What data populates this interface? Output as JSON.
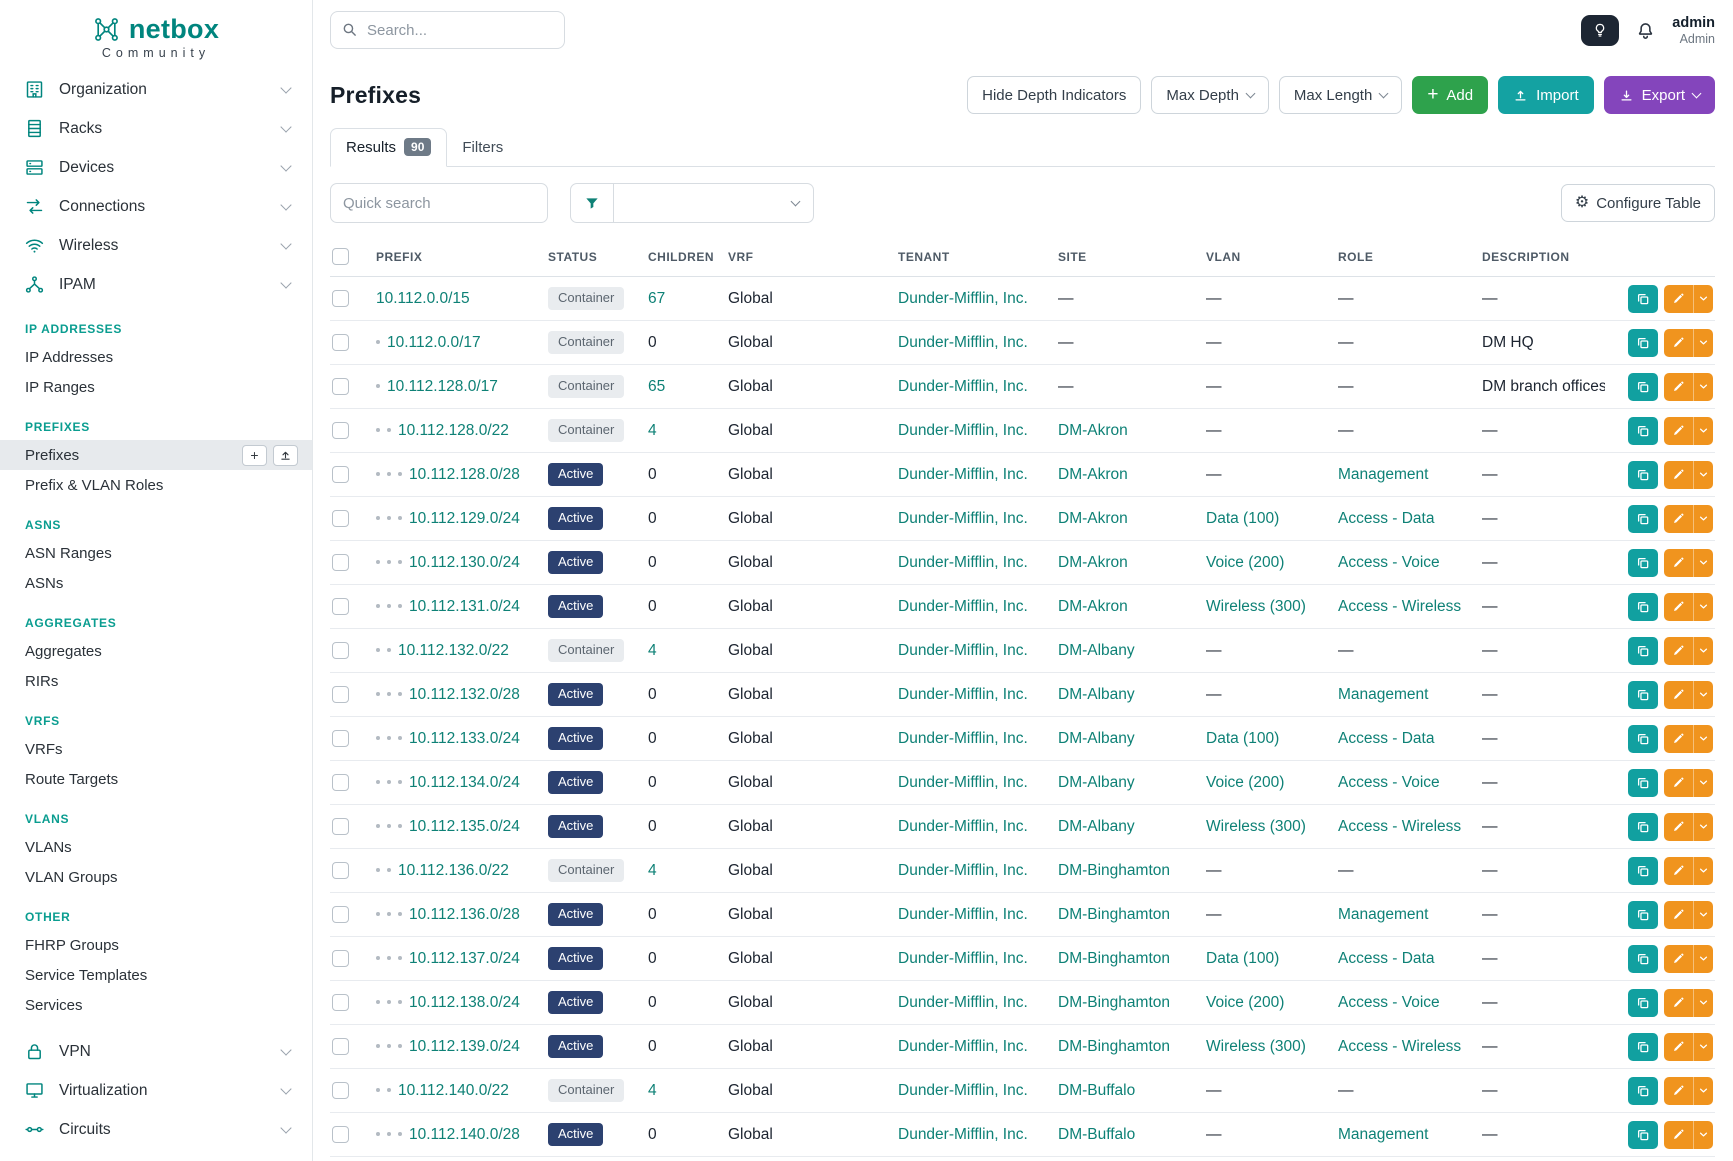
{
  "colors": {
    "brand_teal": "#00857e",
    "link_teal": "#0e8176",
    "status_active_bg": "#2c4170",
    "status_container_bg": "#e9ecef",
    "add_button_green": "#2ea24c",
    "import_button_teal": "#14a2a2",
    "export_button_purple": "#8445bc",
    "copy_button_teal": "#11a0a0",
    "edit_button_orange": "#f0941e"
  },
  "brand": {
    "logo_text": "netbox",
    "subtitle": "Community"
  },
  "topbar": {
    "search_placeholder": "Search...",
    "user_name": "admin",
    "user_role": "Admin"
  },
  "sidebar": {
    "menus": [
      {
        "label": "Organization",
        "icon": "building-icon"
      },
      {
        "label": "Racks",
        "icon": "rack-icon"
      },
      {
        "label": "Devices",
        "icon": "device-icon"
      },
      {
        "label": "Connections",
        "icon": "cable-icon"
      },
      {
        "label": "Wireless",
        "icon": "wifi-icon"
      },
      {
        "label": "IPAM",
        "icon": "ip-network-icon"
      }
    ],
    "sections": [
      {
        "title": "IP ADDRESSES",
        "items": [
          {
            "label": "IP Addresses"
          },
          {
            "label": "IP Ranges"
          }
        ]
      },
      {
        "title": "PREFIXES",
        "items": [
          {
            "label": "Prefixes",
            "active": true
          },
          {
            "label": "Prefix & VLAN Roles"
          }
        ]
      },
      {
        "title": "ASNS",
        "items": [
          {
            "label": "ASN Ranges"
          },
          {
            "label": "ASNs"
          }
        ]
      },
      {
        "title": "AGGREGATES",
        "items": [
          {
            "label": "Aggregates"
          },
          {
            "label": "RIRs"
          }
        ]
      },
      {
        "title": "VRFS",
        "items": [
          {
            "label": "VRFs"
          },
          {
            "label": "Route Targets"
          }
        ]
      },
      {
        "title": "VLANS",
        "items": [
          {
            "label": "VLANs"
          },
          {
            "label": "VLAN Groups"
          }
        ]
      },
      {
        "title": "OTHER",
        "items": [
          {
            "label": "FHRP Groups"
          },
          {
            "label": "Service Templates"
          },
          {
            "label": "Services"
          }
        ]
      }
    ],
    "footer_menus": [
      {
        "label": "VPN",
        "icon": "lock-icon"
      },
      {
        "label": "Virtualization",
        "icon": "monitor-icon"
      },
      {
        "label": "Circuits",
        "icon": "circuit-icon"
      }
    ]
  },
  "page": {
    "title": "Prefixes",
    "header_buttons": {
      "hide_depth": "Hide Depth Indicators",
      "max_depth": "Max Depth",
      "max_length": "Max Length",
      "add": "Add",
      "import": "Import",
      "export": "Export"
    },
    "tabs": [
      {
        "label": "Results",
        "badge": "90"
      },
      {
        "label": "Filters"
      }
    ],
    "quick_search_placeholder": "Quick search",
    "configure_table": "Configure Table"
  },
  "table": {
    "columns": [
      "PREFIX",
      "STATUS",
      "CHILDREN",
      "VRF",
      "TENANT",
      "SITE",
      "VLAN",
      "ROLE",
      "DESCRIPTION"
    ],
    "rows": [
      {
        "depth": 0,
        "prefix": "10.112.0.0/15",
        "status": "Container",
        "children": "67",
        "vrf": "Global",
        "tenant": "Dunder-Mifflin, Inc.",
        "site": "—",
        "vlan": "—",
        "role": "—",
        "description": "—"
      },
      {
        "depth": 1,
        "prefix": "10.112.0.0/17",
        "status": "Container",
        "children": "0",
        "vrf": "Global",
        "tenant": "Dunder-Mifflin, Inc.",
        "site": "—",
        "vlan": "—",
        "role": "—",
        "description": "DM HQ"
      },
      {
        "depth": 1,
        "prefix": "10.112.128.0/17",
        "status": "Container",
        "children": "65",
        "vrf": "Global",
        "tenant": "Dunder-Mifflin, Inc.",
        "site": "—",
        "vlan": "—",
        "role": "—",
        "description": "DM branch offices"
      },
      {
        "depth": 2,
        "prefix": "10.112.128.0/22",
        "status": "Container",
        "children": "4",
        "vrf": "Global",
        "tenant": "Dunder-Mifflin, Inc.",
        "site": "DM-Akron",
        "vlan": "—",
        "role": "—",
        "description": "—"
      },
      {
        "depth": 3,
        "prefix": "10.112.128.0/28",
        "status": "Active",
        "children": "0",
        "vrf": "Global",
        "tenant": "Dunder-Mifflin, Inc.",
        "site": "DM-Akron",
        "vlan": "—",
        "role": "Management",
        "description": "—"
      },
      {
        "depth": 3,
        "prefix": "10.112.129.0/24",
        "status": "Active",
        "children": "0",
        "vrf": "Global",
        "tenant": "Dunder-Mifflin, Inc.",
        "site": "DM-Akron",
        "vlan": "Data (100)",
        "role": "Access - Data",
        "description": "—"
      },
      {
        "depth": 3,
        "prefix": "10.112.130.0/24",
        "status": "Active",
        "children": "0",
        "vrf": "Global",
        "tenant": "Dunder-Mifflin, Inc.",
        "site": "DM-Akron",
        "vlan": "Voice (200)",
        "role": "Access - Voice",
        "description": "—"
      },
      {
        "depth": 3,
        "prefix": "10.112.131.0/24",
        "status": "Active",
        "children": "0",
        "vrf": "Global",
        "tenant": "Dunder-Mifflin, Inc.",
        "site": "DM-Akron",
        "vlan": "Wireless (300)",
        "role": "Access - Wireless",
        "description": "—"
      },
      {
        "depth": 2,
        "prefix": "10.112.132.0/22",
        "status": "Container",
        "children": "4",
        "vrf": "Global",
        "tenant": "Dunder-Mifflin, Inc.",
        "site": "DM-Albany",
        "vlan": "—",
        "role": "—",
        "description": "—"
      },
      {
        "depth": 3,
        "prefix": "10.112.132.0/28",
        "status": "Active",
        "children": "0",
        "vrf": "Global",
        "tenant": "Dunder-Mifflin, Inc.",
        "site": "DM-Albany",
        "vlan": "—",
        "role": "Management",
        "description": "—"
      },
      {
        "depth": 3,
        "prefix": "10.112.133.0/24",
        "status": "Active",
        "children": "0",
        "vrf": "Global",
        "tenant": "Dunder-Mifflin, Inc.",
        "site": "DM-Albany",
        "vlan": "Data (100)",
        "role": "Access - Data",
        "description": "—"
      },
      {
        "depth": 3,
        "prefix": "10.112.134.0/24",
        "status": "Active",
        "children": "0",
        "vrf": "Global",
        "tenant": "Dunder-Mifflin, Inc.",
        "site": "DM-Albany",
        "vlan": "Voice (200)",
        "role": "Access - Voice",
        "description": "—"
      },
      {
        "depth": 3,
        "prefix": "10.112.135.0/24",
        "status": "Active",
        "children": "0",
        "vrf": "Global",
        "tenant": "Dunder-Mifflin, Inc.",
        "site": "DM-Albany",
        "vlan": "Wireless (300)",
        "role": "Access - Wireless",
        "description": "—"
      },
      {
        "depth": 2,
        "prefix": "10.112.136.0/22",
        "status": "Container",
        "children": "4",
        "vrf": "Global",
        "tenant": "Dunder-Mifflin, Inc.",
        "site": "DM-Binghamton",
        "vlan": "—",
        "role": "—",
        "description": "—"
      },
      {
        "depth": 3,
        "prefix": "10.112.136.0/28",
        "status": "Active",
        "children": "0",
        "vrf": "Global",
        "tenant": "Dunder-Mifflin, Inc.",
        "site": "DM-Binghamton",
        "vlan": "—",
        "role": "Management",
        "description": "—"
      },
      {
        "depth": 3,
        "prefix": "10.112.137.0/24",
        "status": "Active",
        "children": "0",
        "vrf": "Global",
        "tenant": "Dunder-Mifflin, Inc.",
        "site": "DM-Binghamton",
        "vlan": "Data (100)",
        "role": "Access - Data",
        "description": "—"
      },
      {
        "depth": 3,
        "prefix": "10.112.138.0/24",
        "status": "Active",
        "children": "0",
        "vrf": "Global",
        "tenant": "Dunder-Mifflin, Inc.",
        "site": "DM-Binghamton",
        "vlan": "Voice (200)",
        "role": "Access - Voice",
        "description": "—"
      },
      {
        "depth": 3,
        "prefix": "10.112.139.0/24",
        "status": "Active",
        "children": "0",
        "vrf": "Global",
        "tenant": "Dunder-Mifflin, Inc.",
        "site": "DM-Binghamton",
        "vlan": "Wireless (300)",
        "role": "Access - Wireless",
        "description": "—"
      },
      {
        "depth": 2,
        "prefix": "10.112.140.0/22",
        "status": "Container",
        "children": "4",
        "vrf": "Global",
        "tenant": "Dunder-Mifflin, Inc.",
        "site": "DM-Buffalo",
        "vlan": "—",
        "role": "—",
        "description": "—"
      },
      {
        "depth": 3,
        "prefix": "10.112.140.0/28",
        "status": "Active",
        "children": "0",
        "vrf": "Global",
        "tenant": "Dunder-Mifflin, Inc.",
        "site": "DM-Buffalo",
        "vlan": "—",
        "role": "Management",
        "description": "—"
      }
    ]
  }
}
